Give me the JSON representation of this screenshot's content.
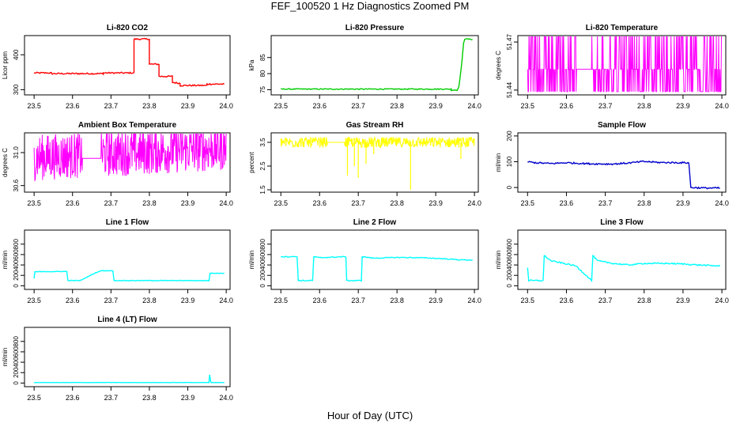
{
  "figure": {
    "title": "FEF_100520  1 Hz Diagnostics Zoomed PM",
    "xlabel": "Hour of Day (UTC)"
  },
  "chart_data": [
    {
      "id": "co2",
      "type": "line",
      "title": "Li-820 CO2",
      "ylabel": "Licor ppm",
      "color": "#ff0000",
      "noise": 2,
      "xlim": [
        23.475,
        24.01
      ],
      "ylim": [
        285,
        455
      ],
      "xticks": [
        23.5,
        23.6,
        23.7,
        23.8,
        23.9,
        24.0
      ],
      "xtick_labels": [
        "23.5",
        "23.6",
        "23.7",
        "23.8",
        "23.9",
        "24.0"
      ],
      "yticks": [
        300,
        400
      ],
      "ytick_labels": [
        "300",
        "400"
      ],
      "segments": [
        [
          [
            23.5,
            348
          ],
          [
            23.545,
            348
          ],
          [
            23.545,
            346
          ],
          [
            23.68,
            346
          ],
          [
            23.68,
            348
          ],
          [
            23.76,
            348
          ],
          [
            23.76,
            445
          ],
          [
            23.8,
            445
          ],
          [
            23.8,
            373
          ],
          [
            23.825,
            373
          ],
          [
            23.825,
            338
          ],
          [
            23.86,
            338
          ],
          [
            23.86,
            321
          ],
          [
            23.88,
            318
          ],
          [
            23.88,
            312
          ],
          [
            23.95,
            312
          ],
          [
            23.95,
            316
          ],
          [
            23.995,
            316
          ]
        ]
      ]
    },
    {
      "id": "pressure",
      "type": "line",
      "title": "Li-820 Pressure",
      "ylabel": "kPa",
      "color": "#00cc00",
      "noise": 0.15,
      "xlim": [
        23.475,
        24.01
      ],
      "ylim": [
        73.4,
        91.8
      ],
      "xticks": [
        23.5,
        23.6,
        23.7,
        23.8,
        23.9,
        24.0
      ],
      "xtick_labels": [
        "23.5",
        "23.6",
        "23.7",
        "23.8",
        "23.9",
        "24.0"
      ],
      "yticks": [
        75,
        80,
        85
      ],
      "ytick_labels": [
        "75",
        "80",
        "85"
      ],
      "segments": [
        [
          [
            23.5,
            75.2
          ],
          [
            23.94,
            75.2
          ],
          [
            23.94,
            74.9
          ],
          [
            23.955,
            74.9
          ],
          [
            23.96,
            76
          ],
          [
            23.965,
            81
          ],
          [
            23.968,
            84
          ],
          [
            23.972,
            89.6
          ],
          [
            23.975,
            90.8
          ],
          [
            23.995,
            90.6
          ]
        ]
      ]
    },
    {
      "id": "temp",
      "type": "noise",
      "title": "Li-820 Temperature",
      "ylabel": "degrees C",
      "color": "#ff00ff",
      "density": 420,
      "xlim": [
        23.475,
        24.01
      ],
      "ylim": [
        51.437,
        51.474
      ],
      "xticks": [
        23.5,
        23.6,
        23.7,
        23.8,
        23.9,
        24.0
      ],
      "xtick_labels": [
        "23.5",
        "23.6",
        "23.7",
        "23.8",
        "23.9",
        "24.0"
      ],
      "yticks": [
        51.44,
        51.47
      ],
      "ytick_labels": [
        "51.44",
        "51.47"
      ],
      "base": 51.453,
      "low": 51.439,
      "high": 51.4735,
      "gaps": [
        [
          23.625,
          23.665
        ]
      ]
    },
    {
      "id": "ambient",
      "type": "noise",
      "title": "Ambient Box Temperature",
      "ylabel": "degrees C",
      "color": "#ff00ff",
      "density": 520,
      "xlim": [
        23.475,
        24.01
      ],
      "ylim": [
        30.52,
        31.24
      ],
      "xticks": [
        23.5,
        23.6,
        23.7,
        23.8,
        23.9,
        24.0
      ],
      "xtick_labels": [
        "23.5",
        "23.6",
        "23.7",
        "23.8",
        "23.9",
        "24.0"
      ],
      "yticks": [
        30.6,
        31.0
      ],
      "ytick_labels": [
        "30.6",
        "31.0"
      ],
      "base": 30.93,
      "low": 30.66,
      "high": 31.22,
      "drift": 0.12,
      "gaps": [
        [
          23.625,
          23.675
        ]
      ]
    },
    {
      "id": "rh",
      "type": "noise",
      "title": "Gas Stream RH",
      "ylabel": "percent",
      "color": "#ffff00",
      "density": 460,
      "xlim": [
        23.475,
        24.01
      ],
      "ylim": [
        1.4,
        3.9
      ],
      "xticks": [
        23.5,
        23.6,
        23.7,
        23.8,
        23.9,
        24.0
      ],
      "xtick_labels": [
        "23.5",
        "23.6",
        "23.7",
        "23.8",
        "23.9",
        "24.0"
      ],
      "yticks": [
        1.5,
        2.5,
        3.5
      ],
      "ytick_labels": [
        "1.5",
        "2.5",
        "3.5"
      ],
      "base": 3.5,
      "low": 3.2,
      "high": 3.8,
      "spikes": [
        [
          23.672,
          2.1
        ],
        [
          23.69,
          2.5
        ],
        [
          23.7,
          2.0
        ],
        [
          23.72,
          2.6
        ],
        [
          23.835,
          1.5
        ],
        [
          23.965,
          2.8
        ],
        [
          23.74,
          3.0
        ]
      ],
      "gaps": [
        [
          23.62,
          23.665
        ]
      ]
    },
    {
      "id": "sample_flow",
      "type": "line",
      "title": "Sample Flow",
      "ylabel": "ml/min",
      "color": "#0000cc",
      "noise": 3,
      "xlim": [
        23.475,
        24.01
      ],
      "ylim": [
        -18,
        212
      ],
      "xticks": [
        23.5,
        23.6,
        23.7,
        23.8,
        23.9,
        24.0
      ],
      "xtick_labels": [
        "23.5",
        "23.6",
        "23.7",
        "23.8",
        "23.9",
        "24.0"
      ],
      "yticks": [
        0,
        100,
        200
      ],
      "ytick_labels": [
        "0",
        "100",
        "200"
      ],
      "segments": [
        [
          [
            23.5,
            100
          ],
          [
            23.52,
            96
          ],
          [
            23.56,
            93
          ],
          [
            23.6,
            96
          ],
          [
            23.66,
            92
          ],
          [
            23.72,
            91
          ],
          [
            23.76,
            95
          ],
          [
            23.8,
            101
          ],
          [
            23.84,
            97
          ],
          [
            23.915,
            96
          ],
          [
            23.915,
            95
          ],
          [
            23.92,
            0
          ],
          [
            23.96,
            -2
          ],
          [
            23.995,
            -2
          ]
        ]
      ]
    },
    {
      "id": "line1",
      "type": "line",
      "title": "Line 1 Flow",
      "ylabel": "ml/min",
      "color": "#00ffff",
      "noise": 5,
      "xlim": [
        23.475,
        24.01
      ],
      "ylim": [
        -70,
        1070
      ],
      "xticks": [
        23.5,
        23.6,
        23.7,
        23.8,
        23.9,
        24.0
      ],
      "xtick_labels": [
        "23.5",
        "23.6",
        "23.7",
        "23.8",
        "23.9",
        "24.0"
      ],
      "yticks": [
        0,
        200,
        400,
        600,
        800
      ],
      "ytick_labels": [
        "0",
        "200",
        "400",
        "600",
        "800"
      ],
      "segments": [
        [
          [
            23.5,
            140
          ],
          [
            23.502,
            270
          ],
          [
            23.585,
            275
          ],
          [
            23.588,
            100
          ],
          [
            23.62,
            100
          ],
          [
            23.66,
            250
          ],
          [
            23.675,
            290
          ],
          [
            23.705,
            290
          ],
          [
            23.708,
            100
          ],
          [
            23.955,
            100
          ],
          [
            23.958,
            240
          ],
          [
            23.995,
            240
          ]
        ]
      ]
    },
    {
      "id": "line2",
      "type": "line",
      "title": "Line 2 Flow",
      "ylabel": "ml/min",
      "color": "#00ffff",
      "noise": 8,
      "xlim": [
        23.475,
        24.01
      ],
      "ylim": [
        -70,
        1070
      ],
      "xticks": [
        23.5,
        23.6,
        23.7,
        23.8,
        23.9,
        24.0
      ],
      "xtick_labels": [
        "23.5",
        "23.6",
        "23.7",
        "23.8",
        "23.9",
        "24.0"
      ],
      "yticks": [
        0,
        200,
        400,
        600,
        800
      ],
      "ytick_labels": [
        "0",
        "200",
        "400",
        "600",
        "800"
      ],
      "segments": [
        [
          [
            23.5,
            560
          ],
          [
            23.542,
            560
          ],
          [
            23.545,
            100
          ],
          [
            23.582,
            100
          ],
          [
            23.585,
            560
          ],
          [
            23.6,
            540
          ],
          [
            23.668,
            560
          ],
          [
            23.67,
            100
          ],
          [
            23.708,
            100
          ],
          [
            23.71,
            560
          ],
          [
            23.74,
            530
          ],
          [
            23.8,
            545
          ],
          [
            23.86,
            540
          ],
          [
            23.92,
            520
          ],
          [
            23.96,
            500
          ],
          [
            23.995,
            495
          ]
        ]
      ]
    },
    {
      "id": "line3",
      "type": "line",
      "title": "Line 3 Flow",
      "ylabel": "ml/min",
      "color": "#00ffff",
      "noise": 12,
      "xlim": [
        23.475,
        24.01
      ],
      "ylim": [
        -70,
        1070
      ],
      "xticks": [
        23.5,
        23.6,
        23.7,
        23.8,
        23.9,
        24.0
      ],
      "xtick_labels": [
        "23.5",
        "23.6",
        "23.7",
        "23.8",
        "23.9",
        "24.0"
      ],
      "yticks": [
        0,
        200,
        400,
        600,
        800
      ],
      "ytick_labels": [
        "0",
        "200",
        "400",
        "600",
        "800"
      ],
      "segments": [
        [
          [
            23.5,
            350
          ],
          [
            23.503,
            100
          ],
          [
            23.54,
            100
          ],
          [
            23.543,
            580
          ],
          [
            23.56,
            480
          ],
          [
            23.6,
            420
          ],
          [
            23.625,
            380
          ],
          [
            23.665,
            100
          ],
          [
            23.668,
            580
          ],
          [
            23.68,
            480
          ],
          [
            23.72,
            430
          ],
          [
            23.76,
            400
          ],
          [
            23.8,
            430
          ],
          [
            23.86,
            430
          ],
          [
            23.9,
            420
          ],
          [
            23.94,
            400
          ],
          [
            23.995,
            380
          ]
        ]
      ]
    },
    {
      "id": "line4",
      "type": "line",
      "title": "Line 4 (LT) Flow",
      "ylabel": "ml/min",
      "color": "#00ffff",
      "noise": 2,
      "xlim": [
        23.475,
        24.01
      ],
      "ylim": [
        -70,
        1070
      ],
      "xticks": [
        23.5,
        23.6,
        23.7,
        23.8,
        23.9,
        24.0
      ],
      "xtick_labels": [
        "23.5",
        "23.6",
        "23.7",
        "23.8",
        "23.9",
        "24.0"
      ],
      "yticks": [
        0,
        200,
        400,
        600,
        800
      ],
      "ytick_labels": [
        "0",
        "200",
        "400",
        "600",
        "800"
      ],
      "segments": [
        [
          [
            23.5,
            10
          ],
          [
            23.955,
            10
          ],
          [
            23.957,
            160
          ],
          [
            23.96,
            10
          ],
          [
            23.995,
            10
          ]
        ]
      ]
    }
  ]
}
